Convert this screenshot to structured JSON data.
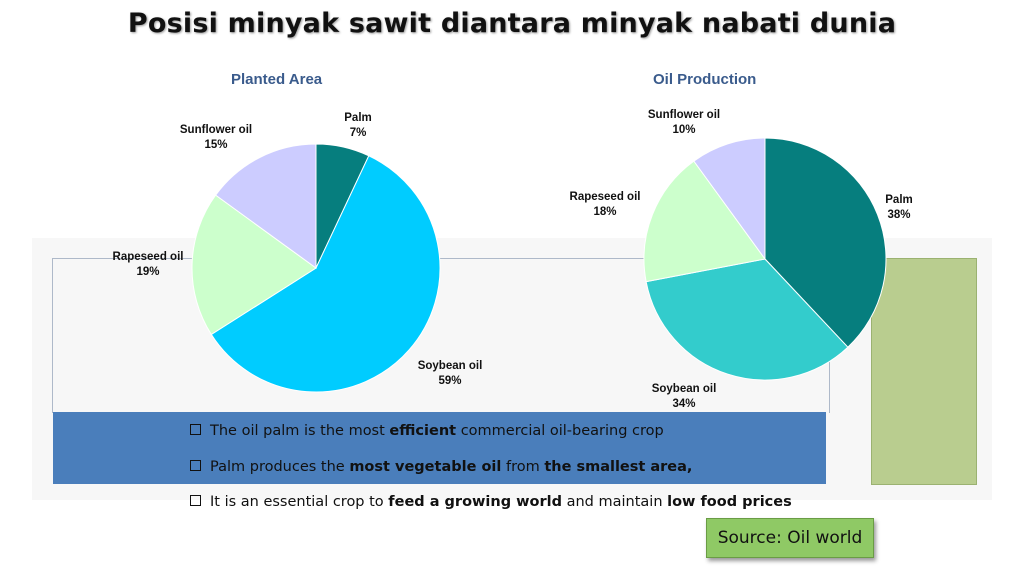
{
  "title": "Posisi minyak sawit diantara minyak nabati dunia",
  "chart_data": [
    {
      "type": "pie",
      "title": "Planted Area",
      "slices": [
        {
          "label": "Palm",
          "value": 7,
          "pct_label": "7%",
          "color": "#067e7e"
        },
        {
          "label": "Soybean oil",
          "value": 59,
          "pct_label": "59%",
          "color": "#00ccff"
        },
        {
          "label": "Rapeseed oil",
          "value": 19,
          "pct_label": "19%",
          "color": "#ccffcc"
        },
        {
          "label": "Sunflower oil",
          "value": 15,
          "pct_label": "15%",
          "color": "#ccccff"
        }
      ]
    },
    {
      "type": "pie",
      "title": "Oil Production",
      "slices": [
        {
          "label": "Palm",
          "value": 38,
          "pct_label": "38%",
          "color": "#067e7e"
        },
        {
          "label": "Soybean oil",
          "value": 34,
          "pct_label": "34%",
          "color": "#33cccc"
        },
        {
          "label": "Rapeseed oil",
          "value": 18,
          "pct_label": "18%",
          "color": "#ccffcc"
        },
        {
          "label": "Sunflower oil",
          "value": 10,
          "pct_label": "10%",
          "color": "#ccccff"
        }
      ]
    }
  ],
  "bullets": [
    {
      "parts": [
        {
          "t": "The oil palm is the most ",
          "b": false
        },
        {
          "t": "efficient",
          "b": true
        },
        {
          "t": " commercial oil-bearing crop",
          "b": false
        }
      ]
    },
    {
      "parts": [
        {
          "t": "Palm produces the ",
          "b": false
        },
        {
          "t": "most vegetable oil",
          "b": true
        },
        {
          "t": " from ",
          "b": false
        },
        {
          "t": "the smallest area,",
          "b": true
        }
      ]
    },
    {
      "parts": [
        {
          "t": "It is an essential crop to ",
          "b": false
        },
        {
          "t": "feed a growing world",
          "b": true
        },
        {
          "t": " and maintain ",
          "b": false
        },
        {
          "t": "low food prices",
          "b": true
        }
      ]
    }
  ],
  "source": "Source: Oil world"
}
